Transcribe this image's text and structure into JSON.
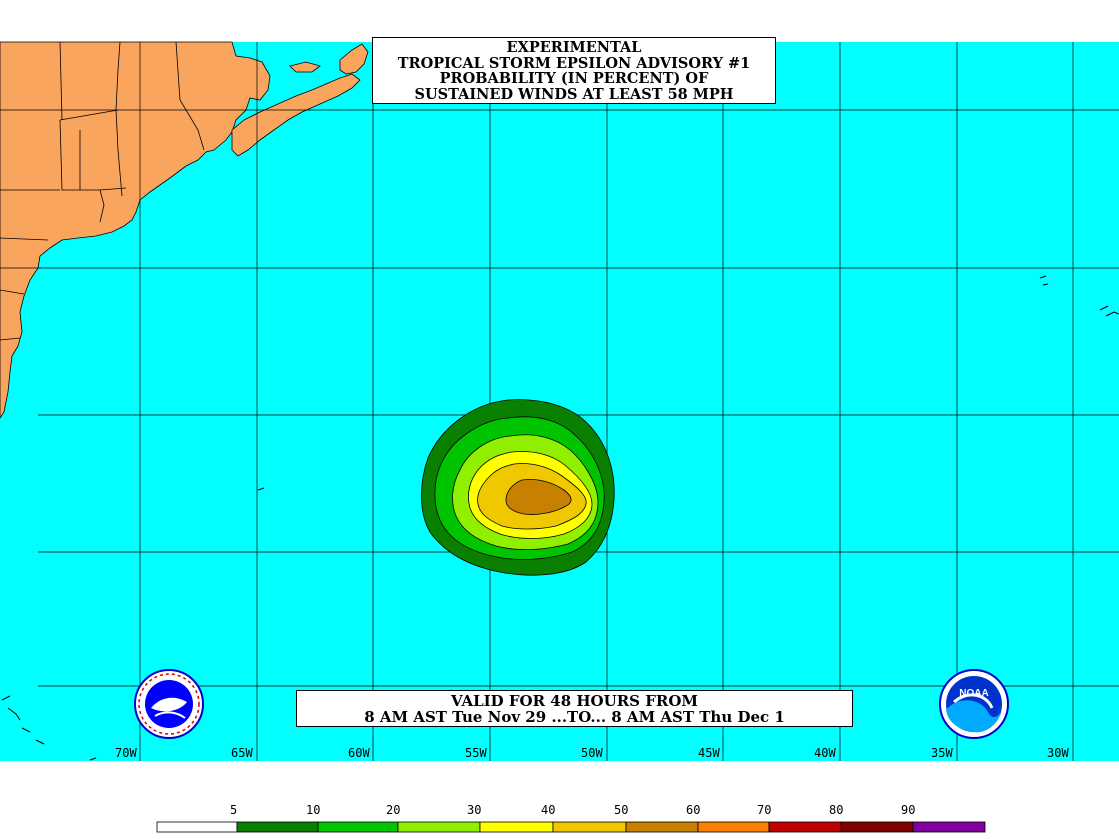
{
  "title_lines": [
    "EXPERIMENTAL",
    "TROPICAL STORM EPSILON ADVISORY #1",
    "PROBABILITY (IN PERCENT) OF",
    "SUSTAINED WINDS AT LEAST 58 MPH"
  ],
  "valid_lines": [
    "VALID FOR 48 HOURS FROM",
    "8 AM AST Tue Nov 29 ...TO... 8 AM AST Thu Dec 1"
  ],
  "longitude_labels": [
    "70W",
    "65W",
    "60W",
    "55W",
    "50W",
    "45W",
    "40W",
    "35W",
    "30W"
  ],
  "legend": {
    "labels": [
      "5",
      "10",
      "20",
      "30",
      "40",
      "50",
      "60",
      "70",
      "80",
      "90"
    ],
    "colors": [
      "#ffffff",
      "#0a8000",
      "#00c400",
      "#90f000",
      "#ffff00",
      "#f0c800",
      "#c88000",
      "#ff8000",
      "#c00000",
      "#800000",
      "#8000a0"
    ]
  },
  "colors": {
    "ocean": "#00ffff",
    "land": "#f9a55e",
    "contour_5": "#0a8000",
    "contour_10": "#00c400",
    "contour_20": "#90f000",
    "contour_30": "#ffff00",
    "contour_40": "#f0c800",
    "contour_50": "#c88000"
  },
  "logos": {
    "left": "national-weather-service-logo",
    "right": "noaa-logo",
    "right_text": "NOAA"
  }
}
